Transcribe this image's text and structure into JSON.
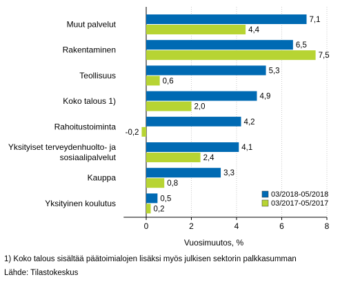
{
  "chart_data": {
    "type": "bar",
    "orientation": "horizontal",
    "categories": [
      [
        "Muut palvelut"
      ],
      [
        "Rakentaminen"
      ],
      [
        "Teollisuus"
      ],
      [
        "Koko talous 1)"
      ],
      [
        "Rahoitustoiminta"
      ],
      [
        "Yksityiset terveydenhuolto- ja",
        "sosiaalipalvelut"
      ],
      [
        "Kauppa"
      ],
      [
        "Yksityinen koulutus"
      ]
    ],
    "series": [
      {
        "name": "03/2018-05/2018",
        "color": "#006ab3",
        "values": [
          7.1,
          6.5,
          5.3,
          4.9,
          4.2,
          4.1,
          3.3,
          0.5
        ],
        "labels": [
          "7,1",
          "6,5",
          "5,3",
          "4,9",
          "4,2",
          "4,1",
          "3,3",
          "0,5"
        ]
      },
      {
        "name": "03/2017-05/2017",
        "color": "#b7d433",
        "values": [
          4.4,
          7.5,
          0.6,
          2.0,
          -0.2,
          2.4,
          0.8,
          0.2
        ],
        "labels": [
          "4,4",
          "7,5",
          "0,6",
          "2,0",
          "-0,2",
          "2,4",
          "0,8",
          "0,2"
        ]
      }
    ],
    "xlabel": "Vuosimuutos, %",
    "xlim": [
      -1,
      8
    ],
    "xticks": [
      0,
      2,
      4,
      6,
      8
    ],
    "xtick_labels": [
      "0",
      "2",
      "4",
      "6",
      "8"
    ],
    "grid": true,
    "legend": "bottom-right"
  },
  "footnotes": {
    "note": "1) Koko talous sisältää päätoimialojen lisäksi myös julkisen sektorin palkkasumman",
    "source": "Lähde: Tilastokeskus"
  }
}
